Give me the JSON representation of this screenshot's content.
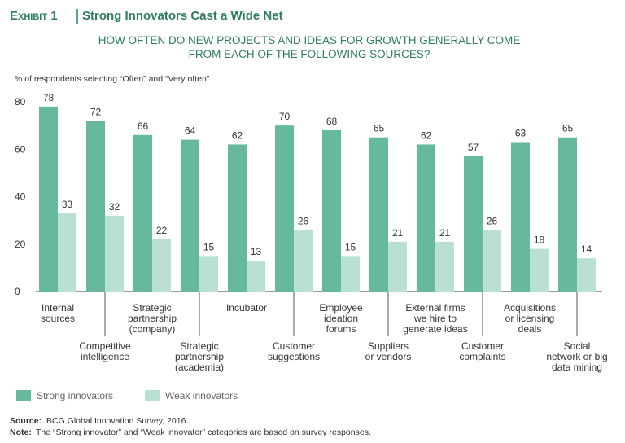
{
  "chart_data": {
    "type": "bar",
    "title_prefix": "Exhibit 1",
    "title": "Strong Innovators Cast a Wide Net",
    "subtitle": [
      "HOW OFTEN DO NEW PROJECTS AND IDEAS FOR GROWTH GENERALLY COME",
      "FROM EACH OF THE FOLLOWING SOURCES?"
    ],
    "y_label": "% of respondents selecting “Often” and “Very often”",
    "categories": [
      [
        "Internal",
        "sources"
      ],
      [
        "Competitive",
        "intelligence"
      ],
      [
        "Strategic",
        "partnership",
        "(company)"
      ],
      [
        "Strategic",
        "partnership",
        "(academia)"
      ],
      [
        "Incubator"
      ],
      [
        "Customer",
        "suggestions"
      ],
      [
        "Employee",
        "ideation",
        "forums"
      ],
      [
        "Suppliers",
        "or vendors"
      ],
      [
        "External firms",
        "we hire to",
        "generate ideas"
      ],
      [
        "Customer",
        "complaints"
      ],
      [
        "Acquisitions",
        "or licensing",
        "deals"
      ],
      [
        "Social",
        "network or big",
        "data mining"
      ]
    ],
    "series": [
      {
        "name": "Strong innovators",
        "color": "#66b99b",
        "values": [
          78,
          72,
          66,
          64,
          62,
          70,
          68,
          65,
          62,
          57,
          63,
          65
        ]
      },
      {
        "name": "Weak innovators",
        "color": "#b9e0d1",
        "values": [
          33,
          32,
          22,
          15,
          13,
          26,
          15,
          21,
          21,
          26,
          18,
          14
        ]
      }
    ],
    "ylim": [
      0,
      80
    ],
    "yticks": [
      0,
      20,
      40,
      60,
      80
    ],
    "legend": "bottom-left",
    "source_label": "Source:",
    "source": "BCG Global Innovation Survey, 2016.",
    "note_label": "Note:",
    "note": "The “Strong innovator” and “Weak innovator” categories are based on survey responses."
  }
}
